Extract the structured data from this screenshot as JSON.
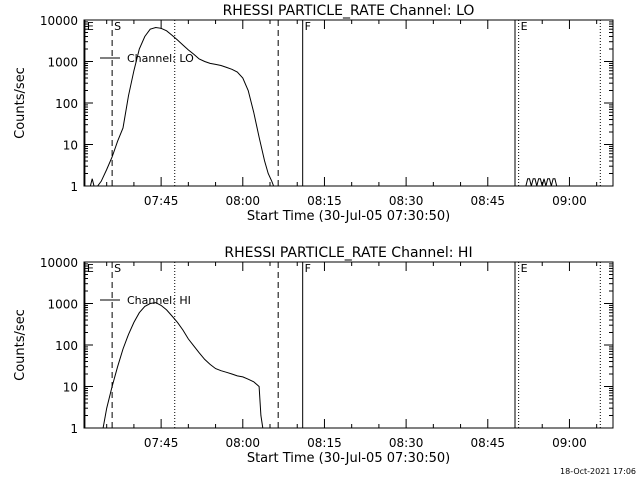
{
  "footer_text": "18-Oct-2021 17:06",
  "chart_data": [
    {
      "type": "line",
      "title": "RHESSI PARTICLE_RATE Channel: LO",
      "xlabel": "Start Time (30-Jul-05 07:30:50)",
      "ylabel": "Counts/sec",
      "yscale": "log",
      "ylim": [
        1,
        10000
      ],
      "xlim": [
        "07:30:50",
        "09:08:00"
      ],
      "yticks": [
        "1",
        "10",
        "100",
        "1000",
        "10000"
      ],
      "xticks": [
        "07:45",
        "08:00",
        "08:15",
        "08:30",
        "08:45",
        "09:00"
      ],
      "grid": false,
      "legend": "top-left",
      "series": [
        {
          "name": "Channel: LO",
          "x": [
            "07:31:40",
            "07:32:00",
            "07:32:20",
            "07:32:40",
            "07:33:00",
            "07:33:20",
            "07:34:00",
            "07:35:00",
            "07:36:00",
            "07:37:00",
            "07:38:00",
            "07:39:00",
            "07:40:00",
            "07:41:00",
            "07:42:00",
            "07:43:00",
            "07:44:00",
            "07:45:00",
            "07:46:00",
            "07:47:00",
            "07:48:00",
            "07:49:00",
            "07:50:00",
            "07:51:00",
            "07:52:00",
            "07:53:00",
            "07:54:00",
            "07:55:00",
            "07:56:00",
            "07:57:00",
            "07:58:00",
            "07:59:00",
            "08:00:00",
            "08:01:00",
            "08:02:00",
            "08:03:00",
            "08:04:00",
            "08:04:40",
            "08:05:20",
            "08:05:40"
          ],
          "y": [
            1,
            1,
            1.5,
            1,
            1,
            1,
            1.3,
            2.5,
            5,
            12,
            25,
            150,
            600,
            2000,
            4000,
            6000,
            6600,
            6300,
            5500,
            4300,
            3300,
            2500,
            1900,
            1500,
            1150,
            1000,
            900,
            850,
            800,
            720,
            650,
            560,
            400,
            200,
            60,
            15,
            4,
            2,
            1.3,
            1
          ]
        },
        {
          "name": "Channel: LO",
          "x": [
            "08:52:00",
            "08:52:20",
            "08:52:40",
            "08:53:00",
            "08:53:20",
            "08:53:40",
            "08:54:00",
            "08:54:20",
            "08:54:40",
            "08:55:00",
            "08:55:20",
            "08:55:40",
            "08:56:00",
            "08:56:20",
            "08:56:40",
            "08:57:00",
            "08:57:20",
            "08:57:40",
            "08:58:00"
          ],
          "y": [
            1,
            1.5,
            1.5,
            1,
            1.5,
            1.5,
            1,
            1.5,
            1.5,
            1,
            1.5,
            1,
            1.5,
            1.5,
            1,
            1.5,
            1.5,
            1,
            1
          ]
        }
      ],
      "markers": [
        {
          "time": "07:31:00",
          "label": "E",
          "style": "solid"
        },
        {
          "time": "07:36:00",
          "label": "S",
          "style": "dashed"
        },
        {
          "time": "07:47:30",
          "label": "",
          "style": "dotted"
        },
        {
          "time": "08:06:30",
          "label": "",
          "style": "dashed"
        },
        {
          "time": "08:11:00",
          "label": "F",
          "style": "solid"
        },
        {
          "time": "08:50:00",
          "label": "",
          "style": "solid"
        },
        {
          "time": "08:50:40",
          "label": "E",
          "style": "dotted"
        },
        {
          "time": "09:05:40",
          "label": "",
          "style": "dotted"
        }
      ]
    },
    {
      "type": "line",
      "title": "RHESSI PARTICLE_RATE Channel: HI",
      "xlabel": "Start Time (30-Jul-05 07:30:50)",
      "ylabel": "Counts/sec",
      "yscale": "log",
      "ylim": [
        1,
        10000
      ],
      "xlim": [
        "07:30:50",
        "09:08:00"
      ],
      "yticks": [
        "1",
        "10",
        "100",
        "1000",
        "10000"
      ],
      "xticks": [
        "07:45",
        "08:00",
        "08:15",
        "08:30",
        "08:45",
        "09:00"
      ],
      "grid": false,
      "legend": "top-left",
      "series": [
        {
          "name": "Channel: HI",
          "x": [
            "07:34:20",
            "07:35:00",
            "07:36:00",
            "07:37:00",
            "07:38:00",
            "07:39:00",
            "07:40:00",
            "07:41:00",
            "07:42:00",
            "07:43:00",
            "07:44:00",
            "07:45:00",
            "07:46:00",
            "07:47:00",
            "07:48:00",
            "07:49:00",
            "07:50:00",
            "07:51:00",
            "07:52:00",
            "07:53:00",
            "07:54:00",
            "07:55:00",
            "07:56:00",
            "07:57:00",
            "07:58:00",
            "07:59:00",
            "08:00:00",
            "08:01:00",
            "08:02:00",
            "08:03:00",
            "08:03:20",
            "08:03:40"
          ],
          "y": [
            1,
            3,
            10,
            30,
            80,
            180,
            350,
            600,
            850,
            1000,
            1050,
            900,
            700,
            500,
            350,
            230,
            140,
            95,
            65,
            45,
            34,
            27,
            24,
            22,
            20,
            18,
            17,
            15,
            13,
            10,
            2,
            1
          ]
        }
      ],
      "markers": [
        {
          "time": "07:31:00",
          "label": "E",
          "style": "solid"
        },
        {
          "time": "07:36:00",
          "label": "S",
          "style": "dashed"
        },
        {
          "time": "07:47:30",
          "label": "",
          "style": "dotted"
        },
        {
          "time": "08:06:30",
          "label": "",
          "style": "dashed"
        },
        {
          "time": "08:11:00",
          "label": "F",
          "style": "solid"
        },
        {
          "time": "08:50:00",
          "label": "",
          "style": "solid"
        },
        {
          "time": "08:50:40",
          "label": "E",
          "style": "dotted"
        },
        {
          "time": "09:05:40",
          "label": "",
          "style": "dotted"
        }
      ]
    }
  ]
}
